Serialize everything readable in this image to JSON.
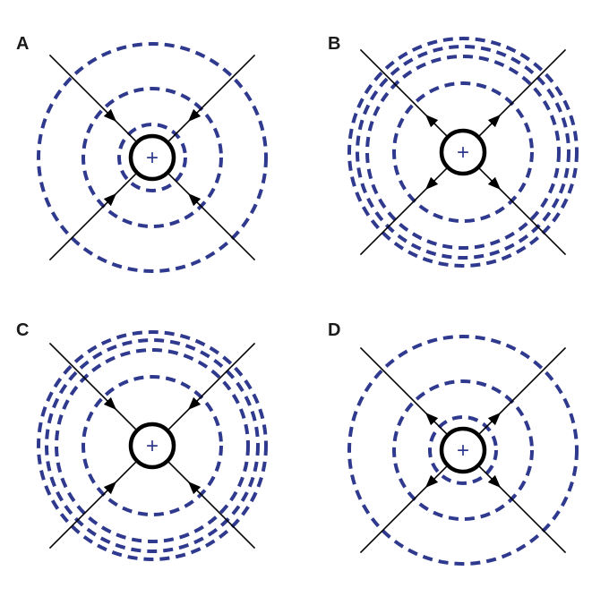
{
  "panels": [
    {
      "label": "A",
      "charge": "+",
      "arrows": "inward",
      "equipotential_count": 3,
      "spacing": "increasing-outward"
    },
    {
      "label": "B",
      "charge": "+",
      "arrows": "outward",
      "equipotential_count": 4,
      "spacing": "decreasing-outward"
    },
    {
      "label": "C",
      "charge": "+",
      "arrows": "inward",
      "equipotential_count": 4,
      "spacing": "decreasing-outward"
    },
    {
      "label": "D",
      "charge": "+",
      "arrows": "outward",
      "equipotential_count": 3,
      "spacing": "increasing-outward"
    }
  ],
  "colors": {
    "equipotential": "#2f3a8f",
    "field_line": "#000000",
    "charge_outline": "#000000"
  }
}
